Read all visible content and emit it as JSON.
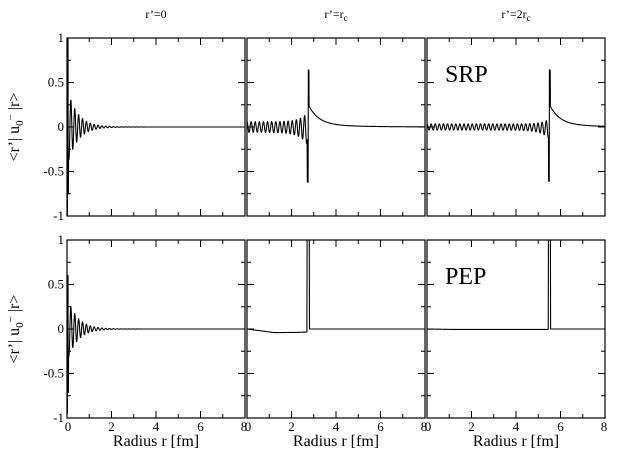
{
  "chart_data": {
    "type": "line",
    "rows": 2,
    "cols": 3,
    "column_titles": [
      {
        "main": "r’=0",
        "sub": ""
      },
      {
        "main": "r’=r",
        "sub": "c"
      },
      {
        "main": "r’=2r",
        "sub": "c"
      }
    ],
    "row_tags": [
      "SRP",
      "PEP"
    ],
    "ylabel": {
      "part1": "<r’| u",
      "sub": "0",
      "sup": "−",
      "part2": " |r>"
    },
    "xlabel": "Radius r   [fm]",
    "xlim": [
      0,
      8
    ],
    "ylim": [
      -1,
      1
    ],
    "xticks": [
      "0",
      "2",
      "4",
      "6",
      "8"
    ],
    "yticks": [
      "-1",
      "-0.5",
      "0",
      "0.5",
      "1"
    ],
    "panels": [
      {
        "row": 0,
        "col": 0,
        "kind": "origin_spike",
        "peak": 1.0,
        "trough": -1.0,
        "osc_amp": 0.12,
        "decay_fm": 0.45
      },
      {
        "row": 0,
        "col": 1,
        "kind": "symmetric_spike",
        "center_fm": 2.75,
        "peak": 0.64,
        "trough": -0.62,
        "osc_amp": 0.06
      },
      {
        "row": 0,
        "col": 2,
        "kind": "symmetric_spike",
        "center_fm": 5.5,
        "peak": 0.64,
        "trough": -0.61,
        "osc_amp": 0.035
      },
      {
        "row": 1,
        "col": 0,
        "kind": "origin_spike",
        "peak": 0.6,
        "trough": -0.95,
        "osc_amp": 0.1,
        "decay_fm": 0.45
      },
      {
        "row": 1,
        "col": 1,
        "kind": "delta_spike",
        "center_fm": 2.75,
        "peak": 1.0,
        "baseline_min": -0.04
      },
      {
        "row": 1,
        "col": 2,
        "kind": "delta_spike",
        "center_fm": 5.5,
        "peak": 1.0,
        "baseline_min": -0.005
      }
    ]
  }
}
